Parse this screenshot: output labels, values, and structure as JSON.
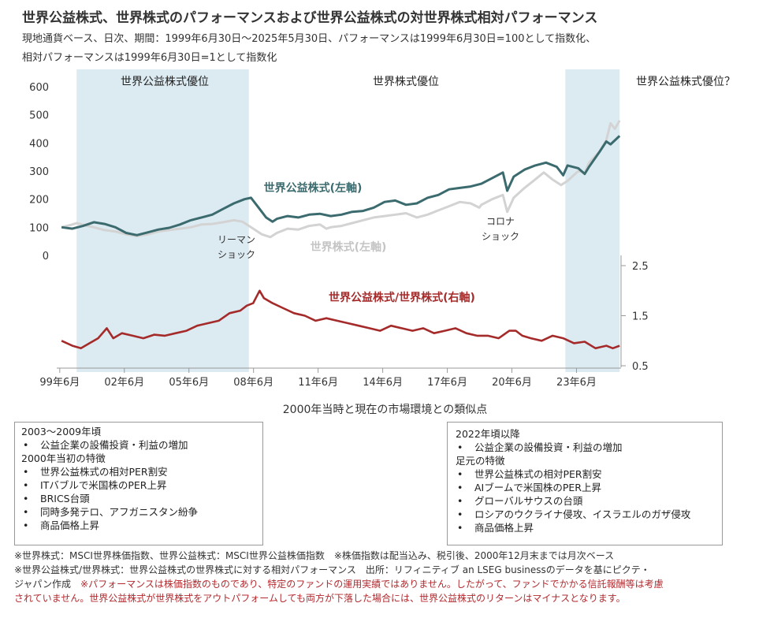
{
  "title": "世界公益株式、世界株式のパフォーマンスおよび世界公益株式の対世界株式相対パフォーマンス",
  "subtitle_line1": "現地通貨ベース、日次、期間：1999年6月30日～2025年5月30日、パフォーマンスは1999年6月30日=100として指数化、",
  "subtitle_line2": "相対パフォーマンスは1999年6月30日=1として指数化",
  "chart_data": {
    "type": "line",
    "x_ticks": [
      "99年6月",
      "02年6月",
      "05年6月",
      "08年6月",
      "11年6月",
      "14年6月",
      "17年6月",
      "20年6月",
      "23年6月"
    ],
    "x_range": [
      "1999-06-30",
      "2025-05-30"
    ],
    "left_axis": {
      "ticks": [
        "0",
        "100",
        "200",
        "300",
        "400",
        "500",
        "600"
      ],
      "ylim": [
        0,
        600
      ]
    },
    "right_axis": {
      "ticks": [
        "0.5",
        "1.5",
        "2.5"
      ],
      "ylim": [
        0.5,
        2.5
      ]
    },
    "shaded_regions": [
      {
        "label": "世界公益株式優位",
        "start": 2000.2,
        "end": 2008.2
      },
      {
        "label": "世界株式優位",
        "start": null,
        "end": null
      },
      {
        "label": "世界公益株式優位？",
        "start": 2022.9,
        "end": 2025.42
      }
    ],
    "annotations": [
      {
        "text_lines": [
          "リーマン",
          "ショック"
        ]
      },
      {
        "text_lines": [
          "コロナ",
          "ショック"
        ]
      }
    ],
    "series": [
      {
        "name": "世界公益株式(左軸)",
        "axis": "left",
        "color": "#3b6b6e",
        "points": [
          [
            1999.5,
            100
          ],
          [
            2000.0,
            95
          ],
          [
            2000.5,
            105
          ],
          [
            2001.0,
            118
          ],
          [
            2001.5,
            112
          ],
          [
            2002.0,
            100
          ],
          [
            2002.5,
            80
          ],
          [
            2003.0,
            72
          ],
          [
            2003.5,
            82
          ],
          [
            2004.0,
            92
          ],
          [
            2004.5,
            98
          ],
          [
            2005.0,
            110
          ],
          [
            2005.5,
            125
          ],
          [
            2006.0,
            135
          ],
          [
            2006.5,
            145
          ],
          [
            2007.0,
            165
          ],
          [
            2007.5,
            185
          ],
          [
            2008.0,
            200
          ],
          [
            2008.3,
            205
          ],
          [
            2008.7,
            165
          ],
          [
            2009.0,
            135
          ],
          [
            2009.3,
            120
          ],
          [
            2009.5,
            130
          ],
          [
            2010.0,
            140
          ],
          [
            2010.5,
            135
          ],
          [
            2011.0,
            145
          ],
          [
            2011.5,
            148
          ],
          [
            2012.0,
            140
          ],
          [
            2012.5,
            145
          ],
          [
            2013.0,
            155
          ],
          [
            2013.5,
            158
          ],
          [
            2014.0,
            170
          ],
          [
            2014.5,
            190
          ],
          [
            2015.0,
            195
          ],
          [
            2015.5,
            180
          ],
          [
            2016.0,
            185
          ],
          [
            2016.5,
            205
          ],
          [
            2017.0,
            215
          ],
          [
            2017.5,
            235
          ],
          [
            2018.0,
            240
          ],
          [
            2018.5,
            245
          ],
          [
            2019.0,
            255
          ],
          [
            2019.5,
            275
          ],
          [
            2020.0,
            295
          ],
          [
            2020.2,
            230
          ],
          [
            2020.5,
            280
          ],
          [
            2021.0,
            305
          ],
          [
            2021.5,
            320
          ],
          [
            2022.0,
            330
          ],
          [
            2022.5,
            315
          ],
          [
            2022.8,
            285
          ],
          [
            2023.0,
            320
          ],
          [
            2023.5,
            310
          ],
          [
            2023.8,
            290
          ],
          [
            2024.0,
            315
          ],
          [
            2024.5,
            370
          ],
          [
            2024.8,
            405
          ],
          [
            2025.0,
            395
          ],
          [
            2025.42,
            425
          ]
        ]
      },
      {
        "name": "世界株式(左軸)",
        "axis": "left",
        "color": "#d3d3d3",
        "points": [
          [
            1999.5,
            100
          ],
          [
            2000.0,
            110
          ],
          [
            2000.2,
            115
          ],
          [
            2000.7,
            105
          ],
          [
            2001.0,
            100
          ],
          [
            2001.5,
            90
          ],
          [
            2002.0,
            85
          ],
          [
            2002.5,
            75
          ],
          [
            2003.0,
            68
          ],
          [
            2003.5,
            75
          ],
          [
            2004.0,
            85
          ],
          [
            2004.5,
            90
          ],
          [
            2005.0,
            95
          ],
          [
            2005.5,
            100
          ],
          [
            2006.0,
            110
          ],
          [
            2006.5,
            112
          ],
          [
            2007.0,
            118
          ],
          [
            2007.5,
            125
          ],
          [
            2007.9,
            120
          ],
          [
            2008.3,
            100
          ],
          [
            2008.8,
            75
          ],
          [
            2009.2,
            65
          ],
          [
            2009.5,
            80
          ],
          [
            2010.0,
            95
          ],
          [
            2010.5,
            92
          ],
          [
            2011.0,
            105
          ],
          [
            2011.5,
            110
          ],
          [
            2011.8,
            95
          ],
          [
            2012.0,
            100
          ],
          [
            2012.5,
            105
          ],
          [
            2013.0,
            115
          ],
          [
            2013.5,
            125
          ],
          [
            2014.0,
            135
          ],
          [
            2014.5,
            140
          ],
          [
            2015.0,
            145
          ],
          [
            2015.5,
            150
          ],
          [
            2016.0,
            135
          ],
          [
            2016.5,
            145
          ],
          [
            2017.0,
            160
          ],
          [
            2017.5,
            175
          ],
          [
            2018.0,
            190
          ],
          [
            2018.5,
            185
          ],
          [
            2018.9,
            170
          ],
          [
            2019.0,
            180
          ],
          [
            2019.5,
            200
          ],
          [
            2020.0,
            215
          ],
          [
            2020.2,
            155
          ],
          [
            2020.5,
            205
          ],
          [
            2021.0,
            240
          ],
          [
            2021.5,
            270
          ],
          [
            2021.9,
            295
          ],
          [
            2022.3,
            270
          ],
          [
            2022.7,
            250
          ],
          [
            2023.0,
            265
          ],
          [
            2023.5,
            300
          ],
          [
            2023.8,
            295
          ],
          [
            2024.0,
            330
          ],
          [
            2024.5,
            370
          ],
          [
            2024.8,
            410
          ],
          [
            2025.0,
            470
          ],
          [
            2025.2,
            450
          ],
          [
            2025.42,
            480
          ]
        ]
      },
      {
        "name": "世界公益株式/世界株式(右軸)",
        "axis": "right",
        "color": "#a52a2a",
        "points": [
          [
            1999.5,
            1.0
          ],
          [
            2000.0,
            0.9
          ],
          [
            2000.4,
            0.85
          ],
          [
            2000.8,
            0.95
          ],
          [
            2001.2,
            1.05
          ],
          [
            2001.6,
            1.25
          ],
          [
            2001.9,
            1.05
          ],
          [
            2002.3,
            1.15
          ],
          [
            2002.8,
            1.1
          ],
          [
            2003.3,
            1.05
          ],
          [
            2003.8,
            1.12
          ],
          [
            2004.3,
            1.1
          ],
          [
            2004.8,
            1.15
          ],
          [
            2005.3,
            1.2
          ],
          [
            2005.8,
            1.3
          ],
          [
            2006.3,
            1.35
          ],
          [
            2006.8,
            1.4
          ],
          [
            2007.3,
            1.55
          ],
          [
            2007.8,
            1.6
          ],
          [
            2008.1,
            1.7
          ],
          [
            2008.4,
            1.75
          ],
          [
            2008.7,
            2.0
          ],
          [
            2008.9,
            1.85
          ],
          [
            2009.3,
            1.75
          ],
          [
            2009.8,
            1.65
          ],
          [
            2010.3,
            1.55
          ],
          [
            2010.8,
            1.5
          ],
          [
            2011.3,
            1.4
          ],
          [
            2011.8,
            1.45
          ],
          [
            2012.3,
            1.4
          ],
          [
            2012.8,
            1.35
          ],
          [
            2013.3,
            1.3
          ],
          [
            2013.8,
            1.25
          ],
          [
            2014.3,
            1.2
          ],
          [
            2014.8,
            1.3
          ],
          [
            2015.3,
            1.25
          ],
          [
            2015.8,
            1.2
          ],
          [
            2016.3,
            1.25
          ],
          [
            2016.8,
            1.15
          ],
          [
            2017.3,
            1.2
          ],
          [
            2017.8,
            1.25
          ],
          [
            2018.3,
            1.15
          ],
          [
            2018.8,
            1.1
          ],
          [
            2019.3,
            1.1
          ],
          [
            2019.8,
            1.05
          ],
          [
            2020.3,
            1.2
          ],
          [
            2020.6,
            1.2
          ],
          [
            2020.9,
            1.1
          ],
          [
            2021.3,
            1.05
          ],
          [
            2021.8,
            1.0
          ],
          [
            2022.3,
            1.1
          ],
          [
            2022.8,
            1.05
          ],
          [
            2023.3,
            0.95
          ],
          [
            2023.8,
            0.98
          ],
          [
            2024.3,
            0.85
          ],
          [
            2024.8,
            0.9
          ],
          [
            2025.1,
            0.85
          ],
          [
            2025.42,
            0.9
          ]
        ]
      }
    ]
  },
  "section_title": "2000年当時と現在の市場環境との類似点",
  "box_left": {
    "header1": "2003～2009年頃",
    "list1": [
      "公益企業の設備投資・利益の増加"
    ],
    "header2": "2000年当初の特徴",
    "list2": [
      "世界公益株式の相対PER割安",
      "ITバブルで米国株のPER上昇",
      "BRICS台頭",
      "同時多発テロ、アフガニスタン紛争",
      "商品価格上昇"
    ]
  },
  "box_right": {
    "header1": "2022年頃以降",
    "list1": [
      "公益企業の設備投資・利益の増加"
    ],
    "header2": "足元の特徴",
    "list2": [
      "世界公益株式の相対PER割安",
      "AIブームで米国株のPER上昇",
      "グローバルサウスの台頭",
      "ロシアのウクライナ侵攻、イスラエルのガザ侵攻",
      "商品価格上昇"
    ]
  },
  "notes": {
    "line1": "※世界株式：MSCI世界株価指数、世界公益株式：MSCI世界公益株価指数　※株価指数は配当込み、税引後、2000年12月末までは月次ベース",
    "line2": "※世界公益株式/世界株式：世界公益株式の世界株式に対する相対パフォーマンス　出所：リフィニティブ an LSEG businessのデータを基にピクテ・",
    "line3_black": "ジャパン作成　",
    "line3_red": "※パフォーマンスは株価指数のものであり、特定のファンドの運用実績ではありません。したがって、ファンドでかかる信託報酬等は考慮",
    "line4_red": "されていません。世界公益株式が世界株式をアウトパフォームしても両方が下落した場合には、世界公益株式のリターンはマイナスとなります。"
  }
}
